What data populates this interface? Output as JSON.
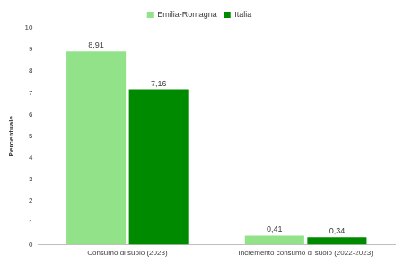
{
  "chart_data": {
    "type": "bar",
    "categories": [
      "Consumo di suolo (2023)",
      "Incremento consumo di suolo (2022-2023)"
    ],
    "series": [
      {
        "name": "Emilia-Romagna",
        "color": "#92e28a",
        "values": [
          8.91,
          0.41
        ],
        "value_labels": [
          "8,91",
          "0,41"
        ]
      },
      {
        "name": "Italia",
        "color": "#008a00",
        "values": [
          7.16,
          0.34
        ],
        "value_labels": [
          "7,16",
          "0,34"
        ]
      }
    ],
    "y_label": "Percentuale",
    "ylim": [
      0,
      10
    ],
    "yticks": [
      0,
      1,
      2,
      3,
      4,
      5,
      6,
      7,
      8,
      9,
      10
    ],
    "grid": false,
    "legend": "top",
    "data_labels": true
  }
}
